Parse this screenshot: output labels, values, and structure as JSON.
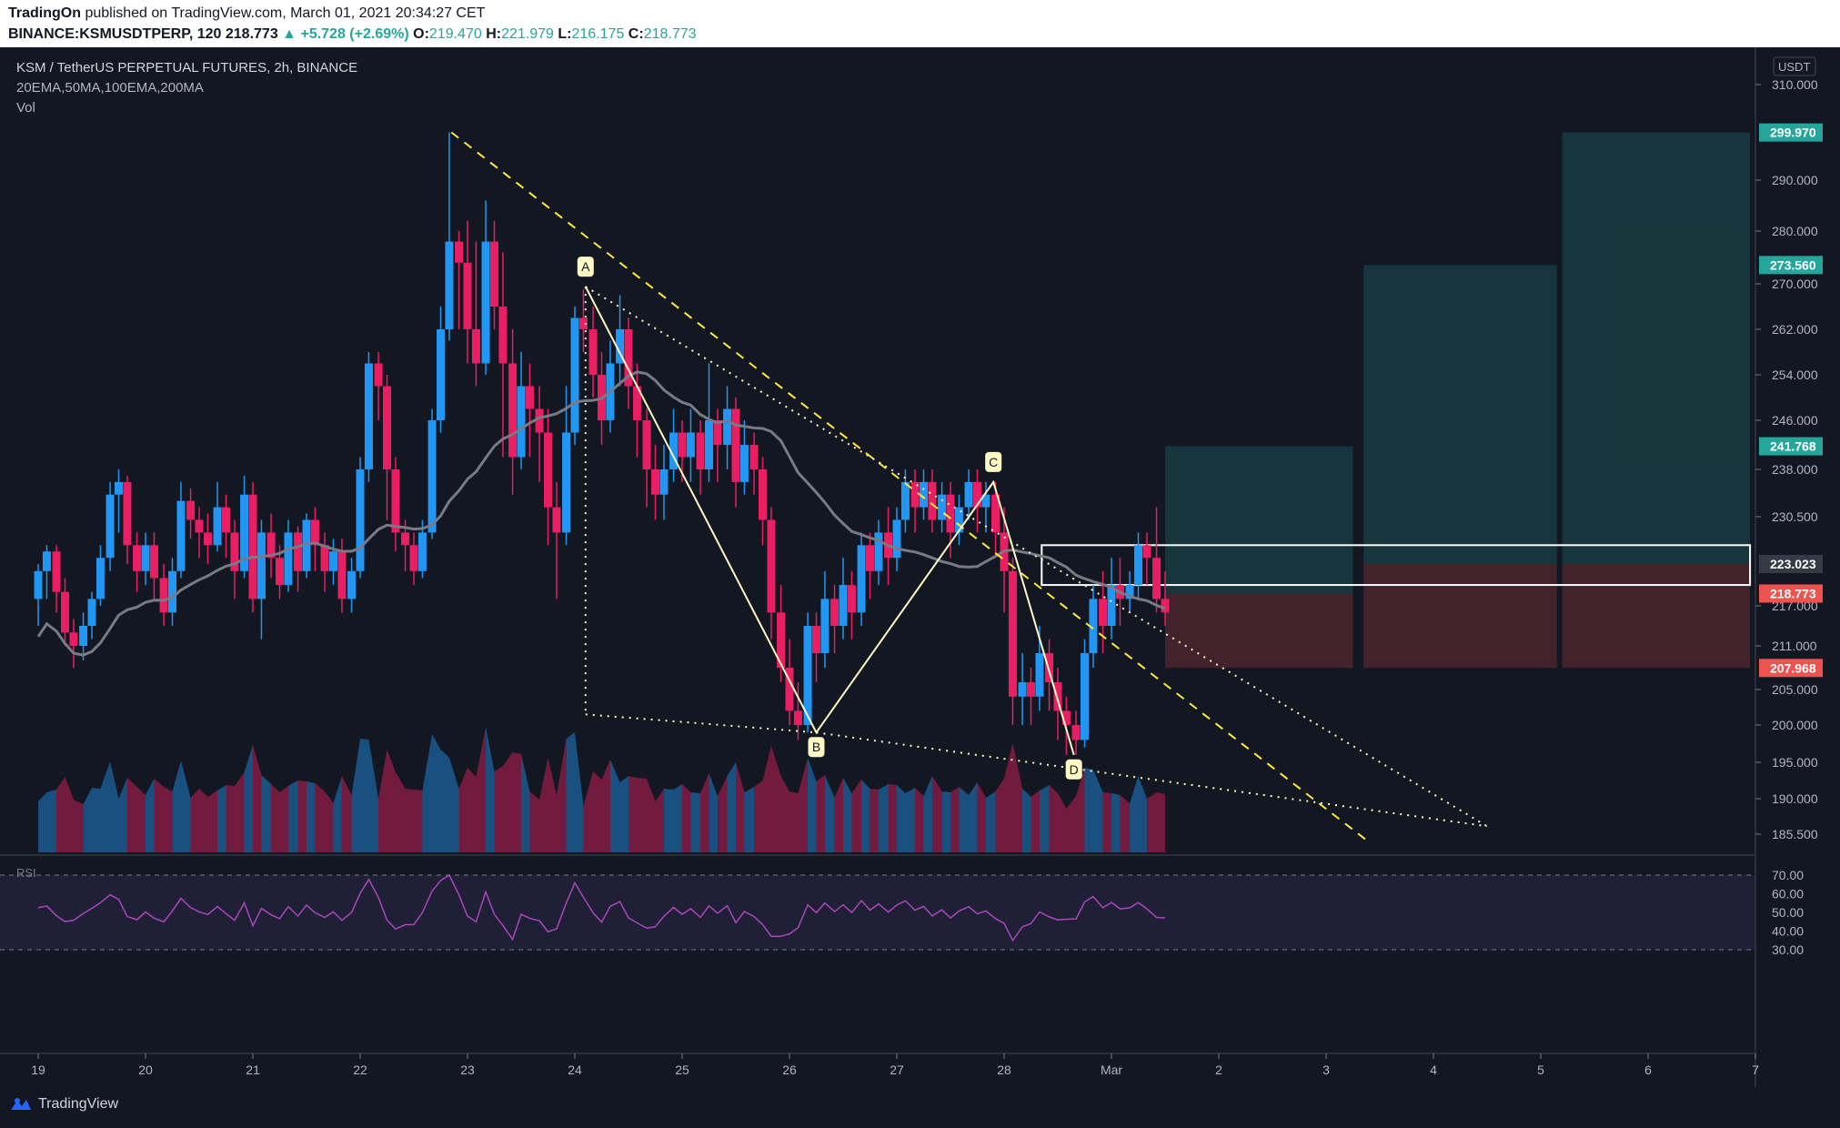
{
  "header": {
    "publisher": "TradingOn",
    "published_text": "published on TradingView.com, March 01, 2021 20:34:27 CET",
    "symbol": "BINANCE:KSMUSDTPERP, 120",
    "last": "218.773",
    "change": "+5.728 (+2.69%)",
    "o_label": "O:",
    "o": "219.470",
    "h_label": "H:",
    "h": "221.979",
    "l_label": "L:",
    "l": "216.175",
    "c_label": "C:",
    "c": "218.773"
  },
  "legend": {
    "title": "KSM / TetherUS PERPETUAL FUTURES, 2h, BINANCE",
    "indicators": "20EMA,50MA,100EMA,200MA",
    "vol": "Vol"
  },
  "rsi": {
    "label": "RSI",
    "upper": "70.00",
    "lower": "30.00"
  },
  "footer": {
    "brand": "TradingView"
  },
  "colors": {
    "bg": "#131722",
    "up": "#26a69a",
    "down": "#ef5350",
    "candle_up": "#2196f3",
    "candle_down": "#e91e63",
    "rsi": "#9c27b0"
  },
  "chart_data": {
    "type": "candlestick",
    "currency": "USDT",
    "y_ticks": [
      "310.000",
      "290.000",
      "280.000",
      "270.000",
      "262.000",
      "254.000",
      "246.000",
      "238.000",
      "230.500",
      "217.000",
      "211.000",
      "205.000",
      "200.000",
      "195.000",
      "190.000",
      "185.500"
    ],
    "price_tags": [
      {
        "label": "299.970",
        "value": 299.97,
        "color": "#26a69a"
      },
      {
        "label": "273.560",
        "value": 273.56,
        "color": "#26a69a"
      },
      {
        "label": "241.768",
        "value": 241.768,
        "color": "#26a69a"
      },
      {
        "label": "223.023",
        "value": 223.023,
        "color": "#363a45"
      },
      {
        "label": "218.773",
        "value": 218.773,
        "color": "#ef5350"
      },
      {
        "label": "207.968",
        "value": 207.968,
        "color": "#ef5350"
      }
    ],
    "x_ticks": [
      "19",
      "20",
      "21",
      "22",
      "23",
      "24",
      "25",
      "26",
      "27",
      "28",
      "Mar",
      "2",
      "3",
      "4",
      "5",
      "6",
      "7"
    ],
    "rsi_ticks": [
      "70.00",
      "60.00",
      "50.00",
      "40.00",
      "30.00"
    ],
    "pattern_points": [
      {
        "label": "A",
        "day": 24.1,
        "price": 269.5
      },
      {
        "label": "B",
        "day": 26.25,
        "price": 199.0
      },
      {
        "label": "C",
        "day": 27.9,
        "price": 236.0
      },
      {
        "label": "D",
        "day": 28.65,
        "price": 196.0
      }
    ],
    "trend_lines": [
      {
        "style": "dashed",
        "from": {
          "day": 22.85,
          "price": 300.0
        },
        "to": {
          "day": 31.4,
          "price": 184.5
        }
      },
      {
        "style": "dotted",
        "from": {
          "day": 24.1,
          "price": 269.5
        },
        "to": {
          "day": 32.5,
          "price": 186.5
        }
      },
      {
        "style": "dotted",
        "from": {
          "day": 26.25,
          "price": 199.0
        },
        "to": {
          "day": 32.5,
          "price": 186.5
        }
      },
      {
        "style": "dotted",
        "from": {
          "day": 24.1,
          "price": 269.5
        },
        "to": {
          "day": 24.1,
          "price": 201.5
        }
      },
      {
        "style": "dotted",
        "from": {
          "day": 24.1,
          "price": 201.5
        },
        "to": {
          "day": 26.25,
          "price": 199.0
        }
      }
    ],
    "target_boxes": [
      {
        "from_day": 29.5,
        "to_day": 31.25,
        "entry": 218.773,
        "target": 241.768,
        "stop": 207.968
      },
      {
        "from_day": 31.35,
        "to_day": 33.15,
        "entry": 223.023,
        "target": 273.56,
        "stop": 207.968
      },
      {
        "from_day": 33.2,
        "to_day": 34.95,
        "entry": 223.023,
        "target": 299.97,
        "stop": 207.968
      }
    ],
    "resistance_box": {
      "from_day": 28.35,
      "to_day": 34.95,
      "low": 220.0,
      "high": 226.0
    },
    "candles": [
      [
        19,
        218,
        222,
        214,
        223
      ],
      [
        19.08,
        222,
        225,
        218,
        226
      ],
      [
        19.17,
        225,
        219,
        216,
        226
      ],
      [
        19.25,
        219,
        213,
        211,
        221
      ],
      [
        19.33,
        213,
        211,
        208,
        215
      ],
      [
        19.42,
        211,
        214,
        209,
        216
      ],
      [
        19.5,
        214,
        218,
        212,
        219
      ],
      [
        19.58,
        218,
        224,
        217,
        226
      ],
      [
        19.67,
        224,
        234,
        222,
        236
      ],
      [
        19.75,
        234,
        236,
        228,
        238
      ],
      [
        19.83,
        236,
        226,
        223,
        237
      ],
      [
        19.92,
        226,
        222,
        219,
        228
      ],
      [
        20,
        222,
        226,
        220,
        228
      ],
      [
        20.08,
        226,
        221,
        218,
        228
      ],
      [
        20.17,
        221,
        216,
        214,
        223
      ],
      [
        20.25,
        216,
        222,
        214,
        224
      ],
      [
        20.33,
        222,
        233,
        221,
        236
      ],
      [
        20.42,
        233,
        230,
        227,
        235
      ],
      [
        20.5,
        230,
        228,
        224,
        232
      ],
      [
        20.58,
        228,
        226,
        223,
        231
      ],
      [
        20.67,
        226,
        232,
        225,
        236
      ],
      [
        20.75,
        232,
        228,
        224,
        234
      ],
      [
        20.83,
        228,
        222,
        218,
        230
      ],
      [
        20.92,
        222,
        234,
        221,
        237
      ],
      [
        21,
        234,
        218,
        216,
        236
      ],
      [
        21.08,
        218,
        228,
        212,
        230
      ],
      [
        21.17,
        228,
        224,
        221,
        231
      ],
      [
        21.25,
        224,
        220,
        218,
        226
      ],
      [
        21.33,
        220,
        228,
        219,
        230
      ],
      [
        21.42,
        228,
        222,
        219,
        229
      ],
      [
        21.5,
        222,
        230,
        221,
        231
      ],
      [
        21.58,
        230,
        226,
        222,
        232
      ],
      [
        21.67,
        226,
        222,
        219,
        228
      ],
      [
        21.75,
        222,
        225,
        220,
        227
      ],
      [
        21.83,
        225,
        218,
        216,
        227
      ],
      [
        21.92,
        218,
        222,
        216,
        224
      ],
      [
        22,
        222,
        238,
        221,
        240
      ],
      [
        22.08,
        238,
        256,
        236,
        258
      ],
      [
        22.17,
        256,
        252,
        246,
        258
      ],
      [
        22.25,
        252,
        238,
        230,
        254
      ],
      [
        22.33,
        238,
        228,
        225,
        240
      ],
      [
        22.42,
        228,
        226,
        222,
        230
      ],
      [
        22.5,
        226,
        222,
        220,
        228
      ],
      [
        22.58,
        222,
        228,
        221,
        230
      ],
      [
        22.67,
        228,
        246,
        227,
        248
      ],
      [
        22.75,
        246,
        262,
        244,
        266
      ],
      [
        22.83,
        262,
        278,
        260,
        300
      ],
      [
        22.92,
        278,
        274,
        262,
        280
      ],
      [
        23,
        274,
        262,
        256,
        282
      ],
      [
        23.08,
        262,
        256,
        252,
        278
      ],
      [
        23.17,
        256,
        278,
        254,
        286
      ],
      [
        23.25,
        278,
        266,
        262,
        282
      ],
      [
        23.33,
        266,
        256,
        240,
        276
      ],
      [
        23.42,
        256,
        240,
        234,
        262
      ],
      [
        23.5,
        240,
        252,
        238,
        258
      ],
      [
        23.58,
        252,
        248,
        240,
        256
      ],
      [
        23.67,
        248,
        244,
        236,
        252
      ],
      [
        23.75,
        244,
        232,
        226,
        248
      ],
      [
        23.83,
        232,
        228,
        218,
        236
      ],
      [
        23.92,
        228,
        244,
        226,
        252
      ],
      [
        24,
        244,
        264,
        242,
        266
      ],
      [
        24.08,
        264,
        262,
        258,
        269
      ],
      [
        24.17,
        262,
        254,
        250,
        266
      ],
      [
        24.25,
        254,
        246,
        242,
        258
      ],
      [
        24.33,
        246,
        256,
        244,
        260
      ],
      [
        24.42,
        256,
        262,
        252,
        268
      ],
      [
        24.5,
        262,
        252,
        248,
        264
      ],
      [
        24.58,
        252,
        246,
        240,
        256
      ],
      [
        24.67,
        246,
        238,
        232,
        248
      ],
      [
        24.75,
        238,
        234,
        230,
        242
      ],
      [
        24.83,
        234,
        238,
        230,
        242
      ],
      [
        24.92,
        238,
        244,
        236,
        248
      ],
      [
        25,
        244,
        240,
        236,
        246
      ],
      [
        25.08,
        240,
        244,
        236,
        248
      ],
      [
        25.17,
        244,
        238,
        234,
        246
      ],
      [
        25.25,
        238,
        246,
        236,
        256
      ],
      [
        25.33,
        246,
        242,
        236,
        248
      ],
      [
        25.42,
        242,
        248,
        238,
        252
      ],
      [
        25.5,
        248,
        236,
        232,
        250
      ],
      [
        25.58,
        236,
        242,
        234,
        246
      ],
      [
        25.67,
        242,
        238,
        234,
        244
      ],
      [
        25.75,
        238,
        230,
        226,
        240
      ],
      [
        25.83,
        230,
        216,
        212,
        232
      ],
      [
        25.92,
        216,
        208,
        206,
        220
      ],
      [
        26,
        208,
        202,
        200,
        212
      ],
      [
        26.08,
        202,
        200,
        198,
        206
      ],
      [
        26.17,
        200,
        214,
        199,
        216
      ],
      [
        26.25,
        214,
        210,
        206,
        216
      ],
      [
        26.33,
        210,
        218,
        208,
        222
      ],
      [
        26.42,
        218,
        214,
        210,
        220
      ],
      [
        26.5,
        214,
        220,
        212,
        224
      ],
      [
        26.58,
        220,
        216,
        212,
        222
      ],
      [
        26.67,
        216,
        226,
        214,
        228
      ],
      [
        26.75,
        226,
        222,
        218,
        228
      ],
      [
        26.83,
        222,
        228,
        220,
        230
      ],
      [
        26.92,
        228,
        224,
        220,
        232
      ],
      [
        27,
        224,
        230,
        222,
        232
      ],
      [
        27.08,
        230,
        236,
        228,
        238
      ],
      [
        27.17,
        236,
        232,
        228,
        238
      ],
      [
        27.25,
        232,
        236,
        230,
        238
      ],
      [
        27.33,
        236,
        230,
        228,
        238
      ],
      [
        27.42,
        230,
        234,
        228,
        236
      ],
      [
        27.5,
        234,
        228,
        224,
        236
      ],
      [
        27.58,
        228,
        232,
        226,
        234
      ],
      [
        27.67,
        232,
        236,
        230,
        238
      ],
      [
        27.75,
        236,
        232,
        228,
        238
      ],
      [
        27.83,
        232,
        234,
        228,
        236
      ],
      [
        27.92,
        234,
        228,
        224,
        236
      ],
      [
        28,
        228,
        222,
        216,
        232
      ],
      [
        28.08,
        222,
        204,
        200,
        224
      ],
      [
        28.17,
        204,
        206,
        200,
        210
      ],
      [
        28.25,
        206,
        204,
        200,
        208
      ],
      [
        28.33,
        204,
        210,
        202,
        214
      ],
      [
        28.42,
        210,
        206,
        202,
        212
      ],
      [
        28.5,
        206,
        202,
        198,
        208
      ],
      [
        28.58,
        202,
        200,
        196,
        204
      ],
      [
        28.67,
        200,
        198,
        196,
        202
      ],
      [
        28.75,
        198,
        210,
        197,
        212
      ],
      [
        28.83,
        210,
        218,
        208,
        220
      ],
      [
        28.92,
        218,
        214,
        210,
        222
      ],
      [
        29,
        214,
        220,
        212,
        224
      ],
      [
        29.08,
        220,
        218,
        214,
        224
      ],
      [
        29.17,
        218,
        220,
        216,
        222
      ],
      [
        29.25,
        220,
        226,
        218,
        228
      ],
      [
        29.33,
        226,
        224,
        220,
        228
      ],
      [
        29.42,
        224,
        218,
        216,
        232
      ],
      [
        29.5,
        218,
        216,
        214,
        222
      ]
    ]
  }
}
